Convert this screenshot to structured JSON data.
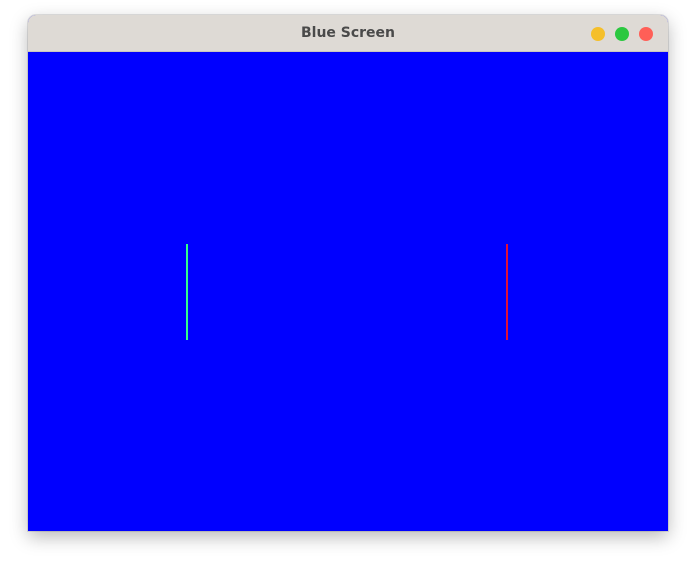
{
  "window": {
    "title": "Blue Screen",
    "controls": {
      "minimize_color": "#f5bf2a",
      "maximize_color": "#2bc840",
      "close_color": "#ff5f57"
    }
  },
  "canvas": {
    "background_color": "#0000ff",
    "left_paddle_color": "#33ff88",
    "right_paddle_color": "#e0103a"
  }
}
